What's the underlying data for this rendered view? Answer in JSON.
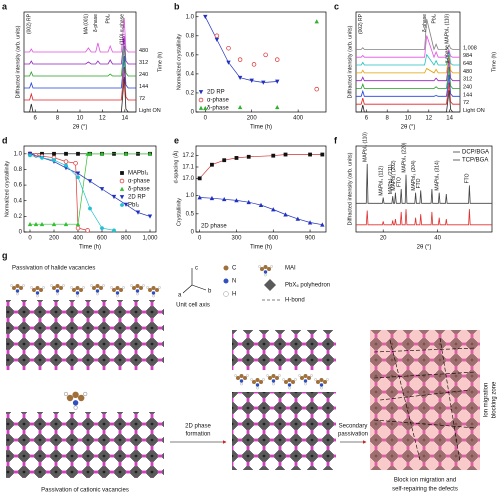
{
  "chart_data": [
    {
      "type": "line",
      "panel": "a",
      "xlabel": "2θ (°)",
      "ylabel": "Diffracted intensity (arb. units)",
      "right_label": "Time (h)",
      "xlim": [
        5,
        15
      ],
      "xticks": [
        6,
        8,
        10,
        12,
        14
      ],
      "ylim": [
        0,
        10
      ],
      "series_labels": "right",
      "annotations": [
        "(002) RP",
        "MA (001)",
        "δ-phase",
        "PbI₂",
        "(110) α-phase"
      ],
      "x": [
        5,
        5.5,
        5.65,
        5.8,
        6.5,
        10.5,
        10.75,
        11,
        11.4,
        11.6,
        11.8,
        12.5,
        12.7,
        12.9,
        13.7,
        13.95,
        14.1,
        14.3,
        15
      ],
      "series": [
        {
          "name": "Light ON",
          "color": "#222222",
          "values": [
            0,
            0,
            0.8,
            0,
            0,
            0,
            0,
            0,
            0,
            0,
            0,
            0,
            0,
            0,
            0,
            3.5,
            0.3,
            0,
            0
          ]
        },
        {
          "name": "72",
          "color": "#e02020",
          "values": [
            1.2,
            1.2,
            1.8,
            1.2,
            1.2,
            1.2,
            1.2,
            1.2,
            1.2,
            1.2,
            1.2,
            1.2,
            1.2,
            1.2,
            1.2,
            4.5,
            1.5,
            1.2,
            1.2
          ]
        },
        {
          "name": "144",
          "color": "#2040e0",
          "values": [
            2.4,
            2.4,
            2.9,
            2.4,
            2.4,
            2.4,
            2.4,
            2.4,
            2.4,
            2.4,
            2.4,
            2.4,
            2.4,
            2.4,
            2.4,
            5.6,
            2.7,
            2.4,
            2.4
          ]
        },
        {
          "name": "240",
          "color": "#20a020",
          "values": [
            3.6,
            3.6,
            4,
            3.6,
            3.6,
            3.6,
            3.6,
            3.6,
            3.6,
            3.6,
            3.6,
            3.6,
            3.8,
            3.6,
            3.6,
            6.6,
            3.9,
            3.6,
            3.6
          ]
        },
        {
          "name": "312",
          "color": "#9020c0",
          "values": [
            4.8,
            4.8,
            5.1,
            4.8,
            4.8,
            4.8,
            5,
            4.8,
            4.8,
            5.1,
            4.8,
            4.8,
            5.2,
            4.8,
            4.8,
            7.6,
            5.1,
            4.8,
            4.8
          ]
        },
        {
          "name": "480",
          "color": "#e050e0",
          "values": [
            6,
            6,
            6.3,
            6,
            6,
            6,
            6.4,
            6,
            6,
            6.9,
            6,
            6,
            6.6,
            6,
            6,
            9.4,
            6.3,
            6,
            6
          ]
        }
      ]
    },
    {
      "type": "scatter",
      "panel": "b",
      "xlabel": "Time (h)",
      "ylabel": "Normalized crystallinity",
      "xlim": [
        -40,
        520
      ],
      "xticks": [
        0,
        200,
        400
      ],
      "ylim": [
        0,
        1.05
      ],
      "yticks": [
        0,
        0.2,
        0.4,
        0.6,
        0.8,
        {
          "value": 1,
          "label": "1.0"
        }
      ],
      "legend": "lower-left",
      "series": [
        {
          "name": "2D RP",
          "color": "#2030c0",
          "marker": "triangle-down",
          "connect": true,
          "x": [
            0,
            50,
            100,
            150,
            200,
            250,
            310
          ],
          "values": [
            1.0,
            0.76,
            0.52,
            0.36,
            0.33,
            0.31,
            0.32
          ]
        },
        {
          "name": "α-phase",
          "color": "#e03030",
          "marker": "open-circle",
          "x": [
            50,
            100,
            150,
            210,
            260,
            310,
            480
          ],
          "values": [
            0.8,
            0.67,
            0.55,
            0.5,
            0.6,
            0.55,
            0.24
          ]
        },
        {
          "name": "δ-phase",
          "color": "#30b030",
          "marker": "triangle-up",
          "x": [
            0,
            150,
            310,
            480
          ],
          "values": [
            0.04,
            0.05,
            0.05,
            0.95
          ]
        }
      ]
    },
    {
      "type": "line",
      "panel": "c",
      "xlabel": "2θ (°)",
      "ylabel": "Diffracted intensity (arb. units)",
      "right_label": "Time (h)",
      "xlim": [
        5,
        15
      ],
      "xticks": [
        6,
        8,
        10,
        12,
        14
      ],
      "ylim": [
        0,
        11.5
      ],
      "series_labels": "right",
      "annotations": [
        "(002) RP",
        "δ-phase",
        "PbI₂",
        "α-phase MAPbI₃ (110)"
      ],
      "x": [
        5,
        5.5,
        5.65,
        5.8,
        6.5,
        10.5,
        10.75,
        11,
        11.4,
        11.6,
        11.8,
        12.5,
        12.7,
        12.9,
        13.7,
        13.95,
        14.1,
        14.3,
        15
      ],
      "series": [
        {
          "name": "Light ON",
          "color": "#222222",
          "values": [
            0,
            0,
            0.8,
            0,
            0,
            0,
            0,
            0,
            0,
            0,
            0,
            0,
            0,
            0,
            0,
            2.5,
            0.3,
            0,
            0
          ]
        },
        {
          "name": "72",
          "color": "#e02020",
          "values": [
            0.9,
            0.9,
            1.6,
            0.9,
            0.9,
            0.9,
            0.9,
            0.9,
            0.9,
            0.9,
            0.9,
            0.9,
            0.9,
            0.9,
            0.9,
            3.4,
            1.2,
            0.9,
            0.9
          ]
        },
        {
          "name": "144",
          "color": "#2040e0",
          "values": [
            1.8,
            1.8,
            2.4,
            1.8,
            1.8,
            1.8,
            1.8,
            1.8,
            1.8,
            1.8,
            1.8,
            1.8,
            1.9,
            1.8,
            1.8,
            4.3,
            2.1,
            1.8,
            1.8
          ]
        },
        {
          "name": "240",
          "color": "#20a020",
          "values": [
            2.7,
            2.7,
            3.2,
            2.7,
            2.7,
            2.7,
            2.7,
            2.7,
            2.7,
            2.7,
            2.7,
            2.7,
            2.9,
            2.7,
            2.7,
            5.2,
            3,
            2.7,
            2.7
          ]
        },
        {
          "name": "312",
          "color": "#9020c0",
          "values": [
            3.6,
            3.6,
            4,
            3.6,
            3.6,
            3.6,
            3.6,
            3.6,
            3.6,
            3.6,
            3.6,
            3.6,
            3.9,
            3.6,
            3.6,
            6.1,
            3.9,
            3.6,
            3.6
          ]
        },
        {
          "name": "480",
          "color": "#e0a000",
          "values": [
            4.5,
            4.5,
            4.8,
            4.5,
            4.5,
            4.5,
            4.5,
            4.5,
            4.5,
            4.5,
            5,
            4.5,
            4.9,
            4.5,
            4.5,
            6.8,
            4.8,
            4.5,
            4.5
          ]
        },
        {
          "name": "648",
          "color": "#20c0c0",
          "values": [
            5.4,
            5.4,
            5.7,
            5.4,
            5.4,
            5.4,
            5.4,
            5.4,
            5.4,
            5.4,
            6.6,
            5.4,
            5.9,
            5.4,
            5.4,
            6.9,
            5.6,
            5.4,
            5.4
          ]
        },
        {
          "name": "984",
          "color": "#e050e0",
          "values": [
            6.3,
            6.3,
            6.5,
            6.3,
            6.3,
            6.3,
            6.3,
            6.3,
            6.3,
            6.3,
            8.8,
            6.3,
            6.9,
            6.3,
            6.3,
            7.1,
            6.4,
            6.3,
            6.3
          ]
        },
        {
          "name": "1,008",
          "color": "#808080",
          "values": [
            7.2,
            7.2,
            7.4,
            7.2,
            7.2,
            7.2,
            7.2,
            7.2,
            7.2,
            7.2,
            10.7,
            7.2,
            7.8,
            7.2,
            7.2,
            7.7,
            7.3,
            7.2,
            7.2
          ]
        }
      ]
    },
    {
      "type": "scatter",
      "panel": "d",
      "xlabel": "Time (h)",
      "ylabel": "Normalized crystallinity",
      "xlim": [
        -50,
        1050
      ],
      "xticks": [
        0,
        200,
        400,
        600,
        800,
        {
          "value": 1000,
          "label": "1,000"
        }
      ],
      "ylim": [
        0,
        1.1
      ],
      "yticks": [
        0,
        0.2,
        0.4,
        0.6,
        0.8,
        {
          "value": 1,
          "label": "1.0"
        }
      ],
      "legend": "center-right",
      "series": [
        {
          "name": "MAPbI₃",
          "color": "#111111",
          "marker": "square",
          "connect": true,
          "x": [
            0,
            100,
            200,
            300,
            400,
            500,
            600,
            700,
            800,
            900,
            1000
          ],
          "values": [
            1,
            1,
            1,
            1,
            1,
            1,
            1,
            1,
            1,
            1,
            1
          ]
        },
        {
          "name": "α-phase",
          "color": "#e03030",
          "marker": "open-circle",
          "connect": true,
          "x": [
            0,
            50,
            100,
            200,
            300,
            380,
            400,
            480
          ],
          "values": [
            1,
            0.98,
            0.97,
            0.95,
            0.9,
            0.88,
            0.05,
            0.02
          ]
        },
        {
          "name": "δ-phase",
          "color": "#30c030",
          "marker": "triangle-up",
          "connect": true,
          "x": [
            0,
            50,
            100,
            200,
            300,
            400,
            480,
            500,
            600,
            800,
            1000
          ],
          "values": [
            0.1,
            0.1,
            0.1,
            0.1,
            0.1,
            0.1,
            1,
            1,
            1,
            1,
            1
          ]
        },
        {
          "name": "2D RP",
          "color": "#2030c0",
          "marker": "triangle-down",
          "connect": true,
          "x": [
            0,
            100,
            200,
            300,
            400,
            500,
            600,
            700,
            800,
            900,
            1000
          ],
          "values": [
            1,
            0.95,
            0.9,
            0.82,
            0.75,
            0.65,
            0.55,
            0.45,
            0.35,
            0.25,
            0.2
          ]
        },
        {
          "name": "PbI₂",
          "color": "#20c0d0",
          "marker": "circle",
          "connect": true,
          "x": [
            0,
            100,
            200,
            300,
            400,
            500,
            600,
            700
          ],
          "values": [
            0.98,
            0.95,
            0.92,
            0.85,
            0.7,
            0.3,
            0.05,
            0.02
          ]
        }
      ]
    },
    {
      "type": "scatter",
      "panel": "e",
      "xlabel": "Time (h)",
      "ylabel": "Crystallinity",
      "y2label": "d-spacing (Å)",
      "xlim": [
        -30,
        1030
      ],
      "xticks": [
        0,
        300,
        600,
        900
      ],
      "ylim": [
        0,
        1.1
      ],
      "yticks": [
        0,
        0.5,
        {
          "value": 1,
          "label": "1.0"
        }
      ],
      "y2lim": [
        16.95,
        17.25
      ],
      "y2ticks": [
        {
          "value": 17,
          "label": "17.0"
        },
        17.1,
        17.2
      ],
      "annotations": [
        "2D phase"
      ],
      "series": [
        {
          "color": "#111111",
          "line_color": "#d03030",
          "marker": "square",
          "connect": true,
          "axis": "y2",
          "x": [
            0,
            100,
            200,
            300,
            400,
            600,
            700,
            900,
            1000
          ],
          "values": [
            17.0,
            17.12,
            17.16,
            17.18,
            17.19,
            17.2,
            17.21,
            17.21,
            17.21
          ]
        },
        {
          "color": "#2030c0",
          "marker": "triangle-up",
          "connect": true,
          "x": [
            0,
            100,
            200,
            300,
            400,
            500,
            600,
            700,
            800,
            900,
            1000
          ],
          "values": [
            0.95,
            0.93,
            0.9,
            0.87,
            0.82,
            0.74,
            0.62,
            0.48,
            0.36,
            0.26,
            0.2
          ]
        }
      ]
    },
    {
      "type": "line",
      "panel": "f",
      "xlabel": "2θ (°)",
      "ylabel": "Diffracted intensity (arb. units)",
      "xlim": [
        10,
        60
      ],
      "xticks": [
        20,
        40
      ],
      "ylim": [
        0,
        12
      ],
      "legend": "upper-right",
      "annotations": [
        "MAPbI₃ (110)",
        "MAPbI₃ (112)",
        "MAPbI₃ (211)",
        "MAPbI₃ (202)",
        "FTO",
        "MAPbI₃ (220)",
        "MAPbI₃ (204)",
        "FTO",
        "MAPbI₃ (314)",
        "FTO"
      ],
      "x": [
        10,
        13.8,
        14.1,
        14.4,
        19.7,
        20,
        20.3,
        23.2,
        23.5,
        23.8,
        24.2,
        24.5,
        24.8,
        26.3,
        26.6,
        26.9,
        28.1,
        28.4,
        28.7,
        31.6,
        31.9,
        32.2,
        33.5,
        33.8,
        34.1,
        37.6,
        37.9,
        38.2,
        40.3,
        40.6,
        40.9,
        42.9,
        43.2,
        43.5,
        51.4,
        51.7,
        52,
        60
      ],
      "series": [
        {
          "name": "DCP/BGA",
          "color": "#444444",
          "values": [
            4,
            4,
            9.5,
            4,
            4,
            4.8,
            4,
            4,
            5,
            4,
            4,
            5.5,
            4,
            4,
            6,
            4,
            4,
            8,
            4,
            4,
            5.5,
            4,
            4,
            5.8,
            4,
            4,
            6,
            4,
            4,
            5.5,
            4,
            4,
            5.3,
            4,
            4,
            6.5,
            4,
            4
          ]
        },
        {
          "name": "TCP/BGA",
          "color": "#e03030",
          "values": [
            1,
            1,
            3,
            1,
            1,
            1.5,
            1,
            1,
            1.6,
            1,
            1,
            1.8,
            1,
            1,
            2.8,
            1,
            1,
            3.2,
            1,
            1,
            2,
            1,
            1,
            2.5,
            1,
            1,
            2.8,
            1,
            1,
            2,
            1,
            1,
            1.8,
            1,
            1,
            3.2,
            1,
            1
          ]
        }
      ]
    }
  ],
  "diagram": {
    "panel": "g",
    "top_left": "Passivation of halide vacancies",
    "bottom_left": "Passivation of cationic vacancies",
    "axis_title": "Unit cell axis",
    "axes": [
      "c",
      "b",
      "a"
    ],
    "legend": [
      "C",
      "N",
      "H",
      "MAI",
      "PbX₆ polyhedron",
      "H-bond"
    ],
    "step1": [
      "2D phase",
      "formation"
    ],
    "step2": [
      "Secondary",
      "passivation"
    ],
    "zone": [
      "Ion migration",
      "blocking zone"
    ],
    "caption": [
      "Block ion migration and",
      "self-repairing the defects"
    ]
  }
}
